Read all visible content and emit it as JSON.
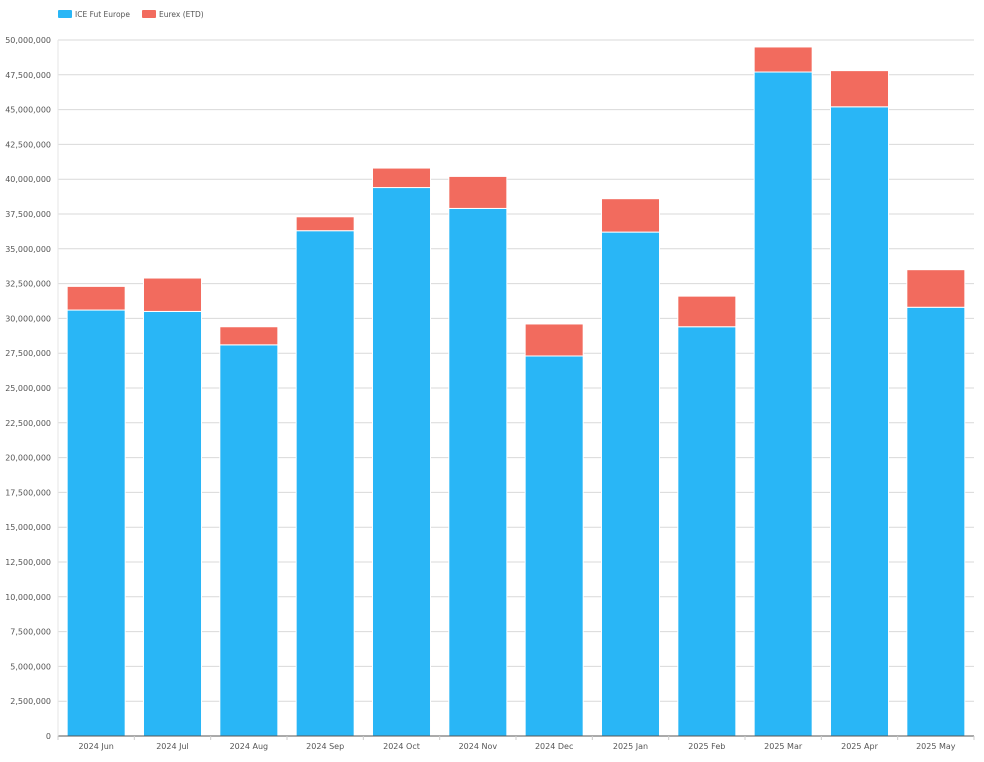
{
  "colors": {
    "ice": "#29b6f6",
    "eurex": "#f26b5e",
    "grid": "#d9d9d9",
    "axis": "#555555",
    "text": "#555555",
    "background": "#ffffff"
  },
  "chart_data": {
    "type": "bar",
    "stacked": true,
    "title": "",
    "xlabel": "",
    "ylabel": "",
    "legend_position": "top-left",
    "grid": true,
    "ylim": [
      0,
      50000000
    ],
    "yticks": [
      0,
      2500000,
      5000000,
      7500000,
      10000000,
      12500000,
      15000000,
      17500000,
      20000000,
      22500000,
      25000000,
      27500000,
      30000000,
      32500000,
      35000000,
      37500000,
      40000000,
      42500000,
      45000000,
      47500000,
      50000000
    ],
    "ytick_labels": [
      "0",
      "2,500,000",
      "5,000,000",
      "7,500,000",
      "10,000,000",
      "12,500,000",
      "15,000,000",
      "17,500,000",
      "20,000,000",
      "22,500,000",
      "25,000,000",
      "27,500,000",
      "30,000,000",
      "32,500,000",
      "35,000,000",
      "37,500,000",
      "40,000,000",
      "42,500,000",
      "45,000,000",
      "47,500,000",
      "50,000,000"
    ],
    "categories": [
      "2024 Jun",
      "2024 Jul",
      "2024 Aug",
      "2024 Sep",
      "2024 Oct",
      "2024 Nov",
      "2024 Dec",
      "2025 Jan",
      "2025 Feb",
      "2025 Mar",
      "2025 Apr",
      "2025 May"
    ],
    "series": [
      {
        "name": "ICE Fut Europe",
        "color": "#29b6f6",
        "values": [
          30600000,
          30500000,
          28100000,
          36300000,
          39400000,
          37900000,
          27300000,
          36200000,
          29400000,
          47700000,
          45200000,
          30800000
        ]
      },
      {
        "name": "Eurex (ETD)",
        "color": "#f26b5e",
        "values": [
          1700000,
          2400000,
          1300000,
          1000000,
          1400000,
          2300000,
          2300000,
          2400000,
          2200000,
          1800000,
          2600000,
          2700000
        ]
      }
    ]
  }
}
